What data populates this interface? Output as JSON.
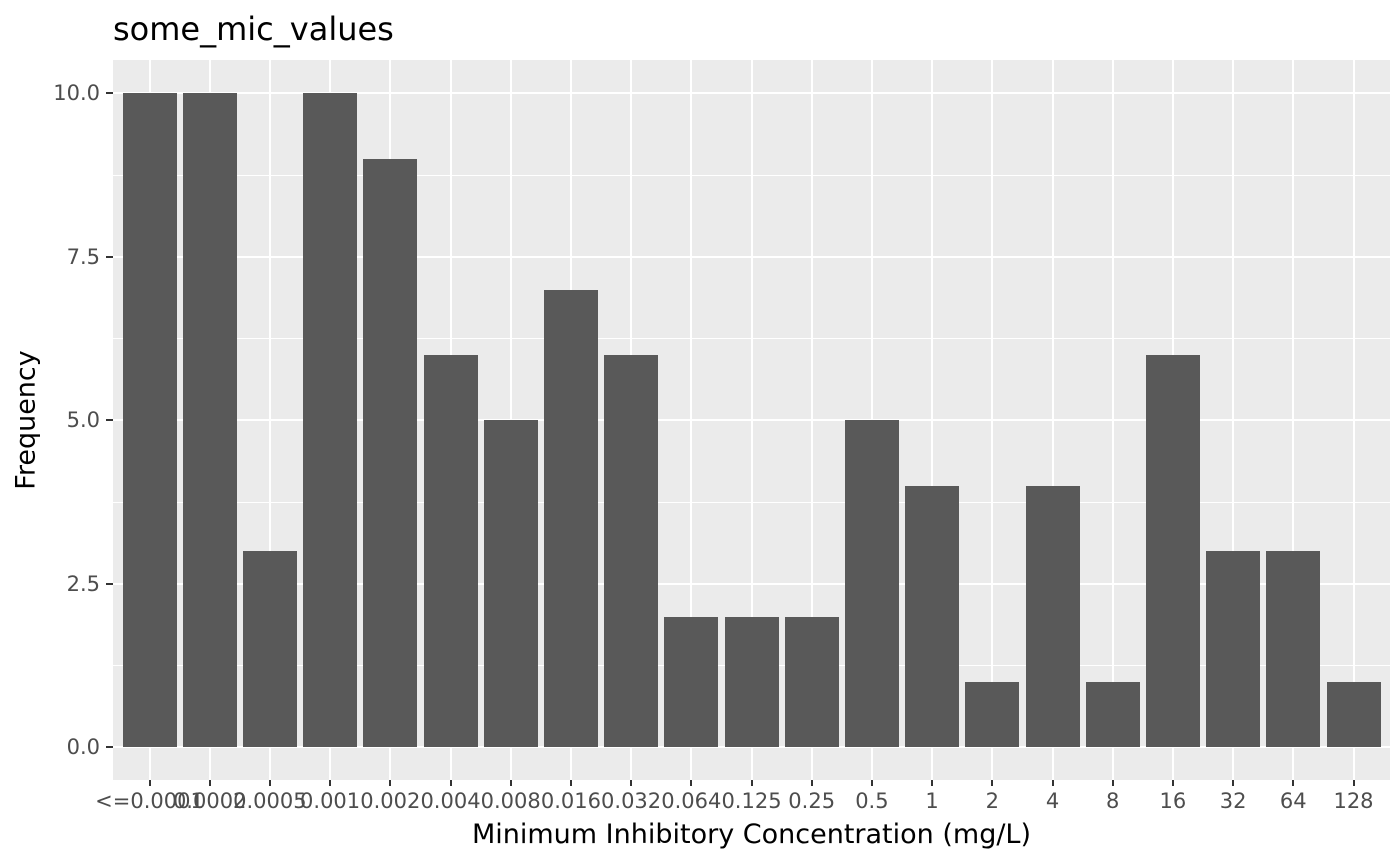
{
  "chart_data": {
    "type": "bar",
    "title": "some_mic_values",
    "xlabel": "Minimum Inhibitory Concentration (mg/L)",
    "ylabel": "Frequency",
    "categories": [
      "<=0.0001",
      "0.0002",
      "0.0005",
      "0.001",
      "0.002",
      "0.004",
      "0.008",
      "0.016",
      "0.032",
      "0.064",
      "0.125",
      "0.25",
      "0.5",
      "1",
      "2",
      "4",
      "8",
      "16",
      "32",
      "64",
      "128"
    ],
    "values": [
      10,
      10,
      3,
      10,
      9,
      6,
      5,
      7,
      6,
      2,
      2,
      2,
      5,
      4,
      1,
      4,
      1,
      6,
      3,
      3,
      1
    ],
    "yticks": [
      0,
      2.5,
      5,
      7.5,
      10
    ],
    "ytick_labels": [
      "0.0",
      "2.5",
      "5.0",
      "7.5",
      "10.0"
    ],
    "ylim": [
      -0.5,
      10.5
    ],
    "grid": true,
    "legend_position": "none",
    "colors": {
      "bar": "#595959",
      "panel_background": "#ebebeb",
      "gridline": "#ffffff",
      "tick_label": "#4d4d4d",
      "axis_title": "#000000",
      "plot_title": "#000000",
      "tick_mark": "#333333",
      "figure_background": "#ffffff"
    }
  }
}
